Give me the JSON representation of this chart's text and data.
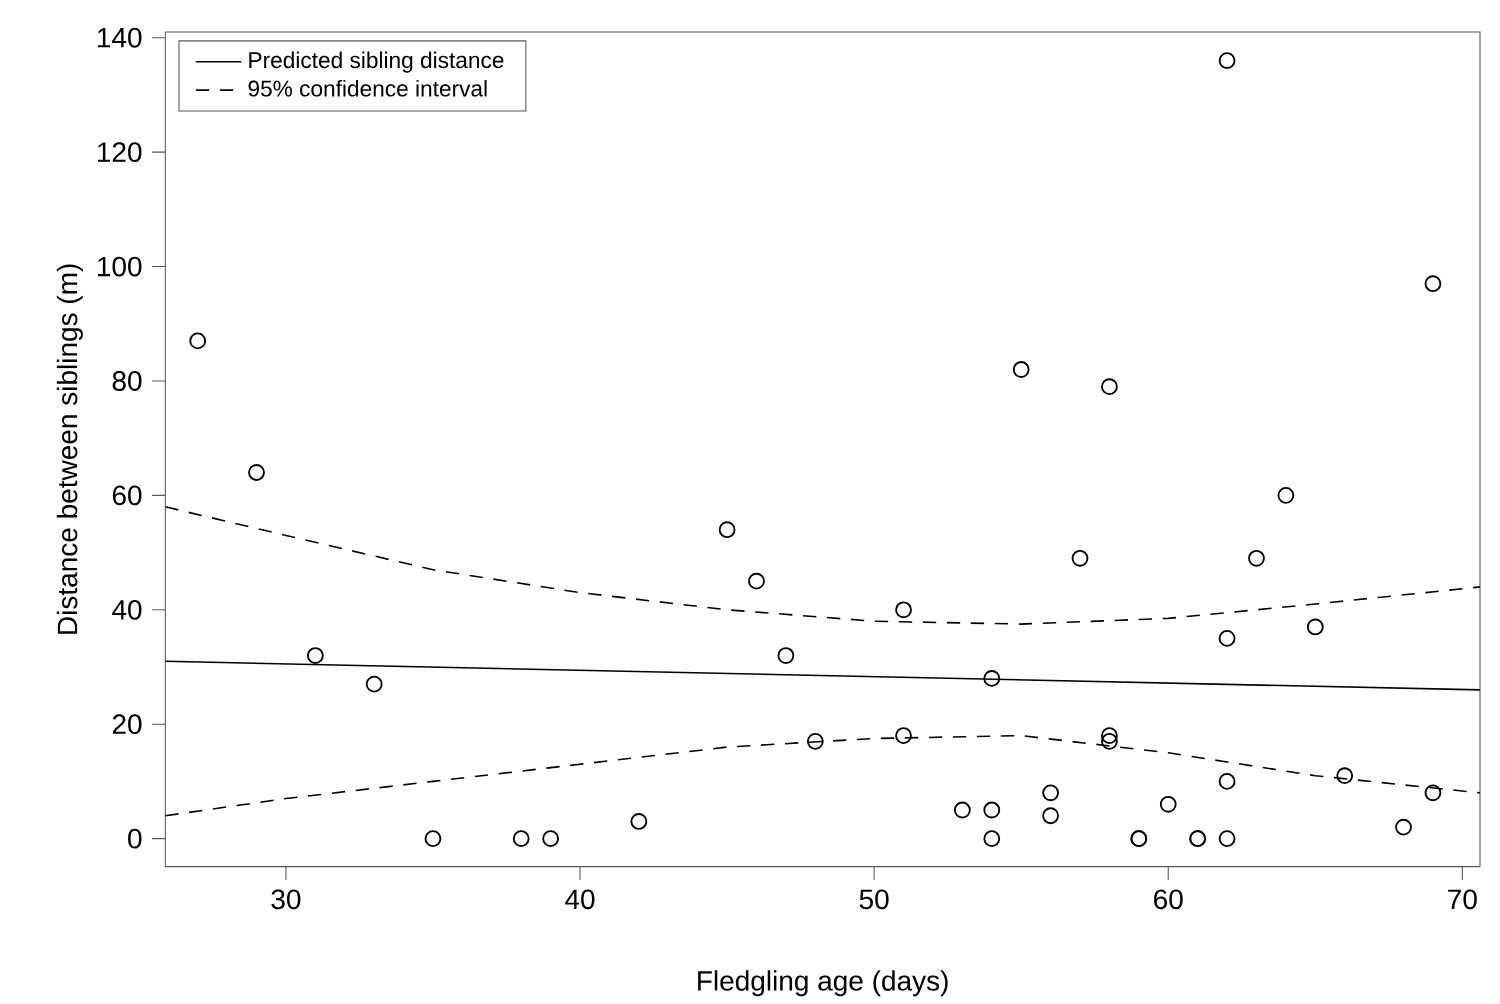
{
  "chart_data": {
    "type": "scatter",
    "xlabel": "Fledgling age (days)",
    "ylabel": "Distance between siblings (m)",
    "xlim": [
      25.9,
      70.6
    ],
    "ylim": [
      -4.9,
      141
    ],
    "xticks": [
      30,
      40,
      50,
      60,
      70
    ],
    "yticks": [
      0,
      20,
      40,
      60,
      80,
      100,
      120,
      140
    ],
    "grid": false,
    "legend": "top left",
    "series": [
      {
        "color": "#000000",
        "marker": "circle",
        "x": [
          27,
          29,
          31,
          33,
          35,
          38,
          39,
          42,
          45,
          46,
          47,
          48,
          51,
          51,
          53,
          54,
          54,
          54,
          55,
          56,
          56,
          57,
          58,
          58,
          58,
          59,
          59,
          60,
          61,
          61,
          62,
          62,
          62,
          62,
          63,
          64,
          65,
          66,
          68,
          69,
          69
        ],
        "values": [
          87,
          64,
          32,
          27,
          0,
          0,
          0,
          3,
          54,
          45,
          32,
          17,
          40,
          18,
          5,
          28,
          5,
          0,
          82,
          8,
          4,
          49,
          79,
          18,
          17,
          0,
          0,
          6,
          0,
          0,
          136,
          35,
          10,
          0,
          49,
          60,
          37,
          11,
          2,
          97,
          8
        ]
      },
      {
        "type": "line",
        "name": "Predicted sibling distance",
        "color": "#000000",
        "line_style": "solid",
        "marker": "none",
        "x": [
          25.9,
          70.6
        ],
        "values": [
          31,
          26
        ]
      },
      {
        "type": "line",
        "name": "95% confidence interval",
        "color": "#000000",
        "line_style": "dashed",
        "marker": "none",
        "x": [
          25.9,
          30,
          35,
          40,
          45,
          50,
          55,
          60,
          65,
          70.6
        ],
        "values": [
          58,
          53,
          47,
          43,
          40,
          38,
          37.5,
          38.5,
          41,
          44
        ]
      },
      {
        "type": "line",
        "color": "#000000",
        "line_style": "dashed",
        "marker": "none",
        "x": [
          25.9,
          30,
          35,
          40,
          45,
          50,
          55,
          60,
          65,
          70.6
        ],
        "values": [
          4,
          7,
          10,
          13,
          16,
          17.5,
          18,
          15,
          11,
          8
        ]
      }
    ]
  }
}
